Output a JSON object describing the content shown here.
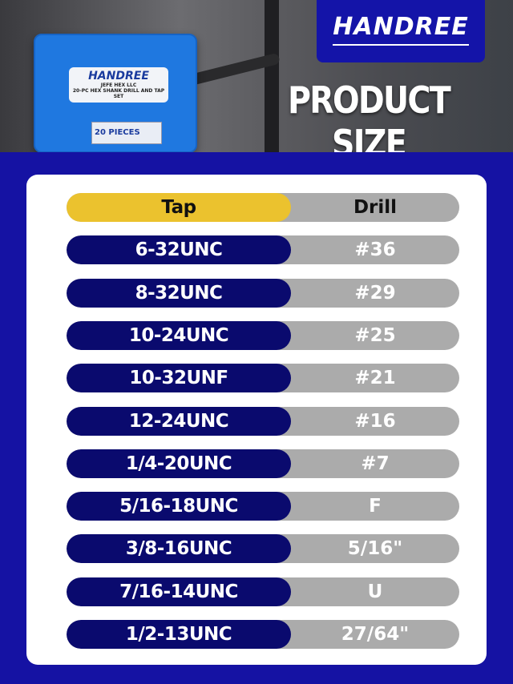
{
  "hero": {
    "box_brand": "HANDREE",
    "box_company": "JEFE HEX LLC",
    "box_product": "20-PC HEX SHANK DRILL AND TAP SET",
    "box_tag": "20 PIECES",
    "logo": "HANDREE",
    "title": "PRODUCT SIZE"
  },
  "colors": {
    "background": "#1512a3",
    "tap_header": "#ebc22e",
    "tap_cell": "#0a0a6e",
    "drill_cell": "#ababab"
  },
  "table": {
    "headers": {
      "tap": "Tap",
      "drill": "Drill"
    },
    "rows": [
      {
        "tap": "6-32UNC",
        "drill": "#36"
      },
      {
        "tap": "8-32UNC",
        "drill": "#29"
      },
      {
        "tap": "10-24UNC",
        "drill": "#25"
      },
      {
        "tap": "10-32UNF",
        "drill": "#21"
      },
      {
        "tap": "12-24UNC",
        "drill": "#16"
      },
      {
        "tap": "1/4-20UNC",
        "drill": "#7"
      },
      {
        "tap": "5/16-18UNC",
        "drill": "F"
      },
      {
        "tap": "3/8-16UNC",
        "drill": "5/16\""
      },
      {
        "tap": "7/16-14UNC",
        "drill": "U"
      },
      {
        "tap": "1/2-13UNC",
        "drill": "27/64\""
      }
    ]
  }
}
